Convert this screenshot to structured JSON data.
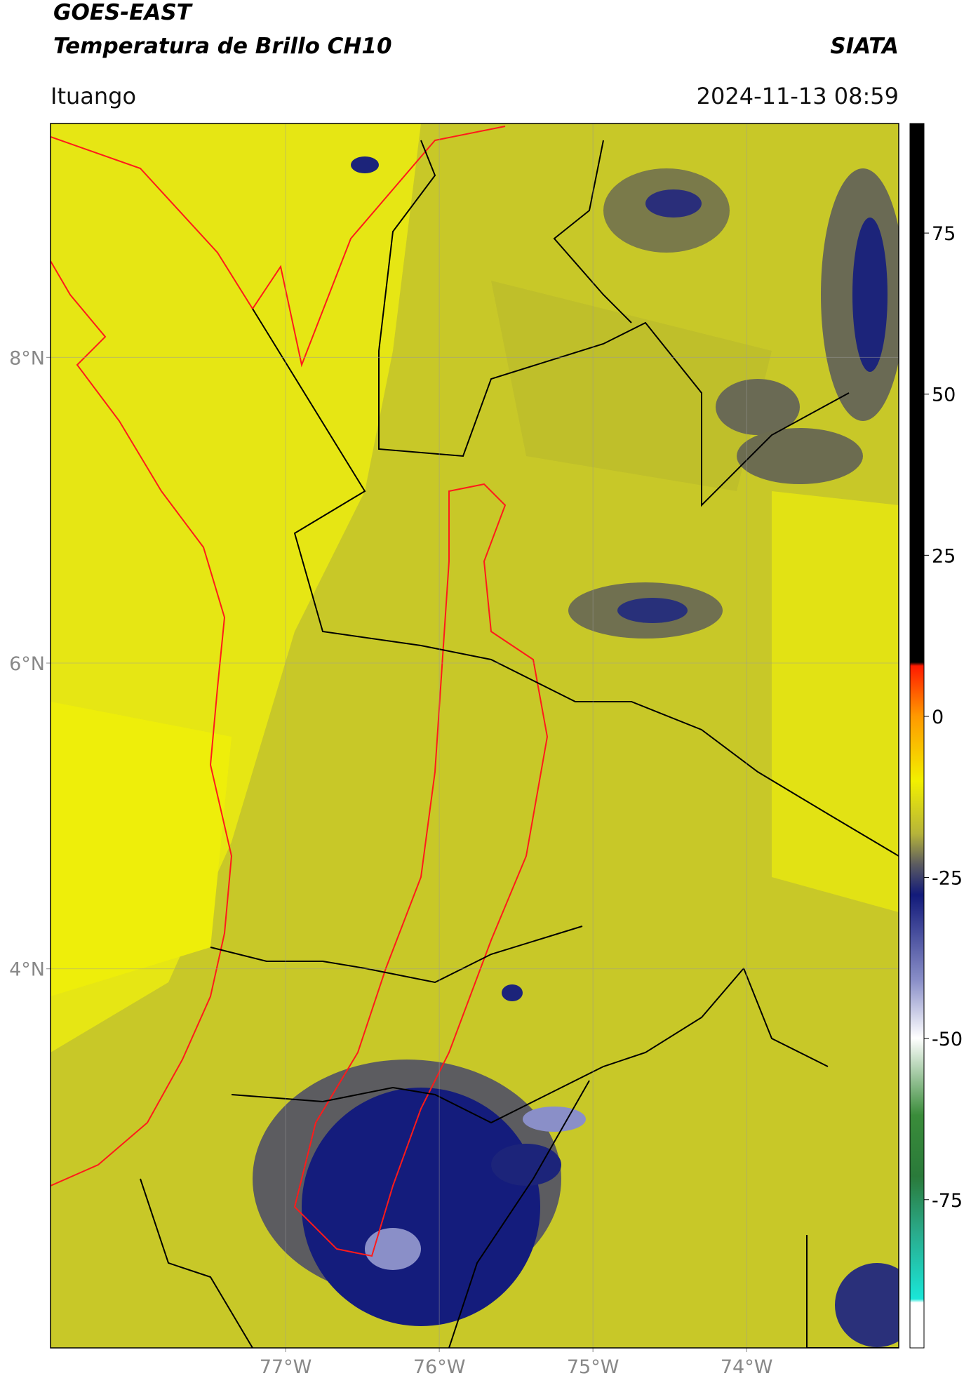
{
  "header": {
    "title": "GOES-EAST",
    "subtitle": "Temperatura de Brillo CH10",
    "brand": "SIATA",
    "location": "Ituango",
    "timestamp": "2024-11-13 08:59"
  },
  "map": {
    "xlim": [
      -78.53,
      -73.01
    ],
    "ylim": [
      1.52,
      9.53
    ],
    "xticks": [
      {
        "value": -77,
        "label": "77°W"
      },
      {
        "value": -76,
        "label": "76°W"
      },
      {
        "value": -75,
        "label": "75°W"
      },
      {
        "value": -74,
        "label": "74°W"
      }
    ],
    "yticks": [
      {
        "value": 8,
        "label": "8°N"
      },
      {
        "value": 6,
        "label": "6°N"
      },
      {
        "value": 4,
        "label": "4°N"
      }
    ],
    "grid": true
  },
  "colorbar": {
    "lim": [
      -98,
      92
    ],
    "ticks": [
      75,
      50,
      25,
      0,
      -25,
      -50,
      -75
    ]
  }
}
